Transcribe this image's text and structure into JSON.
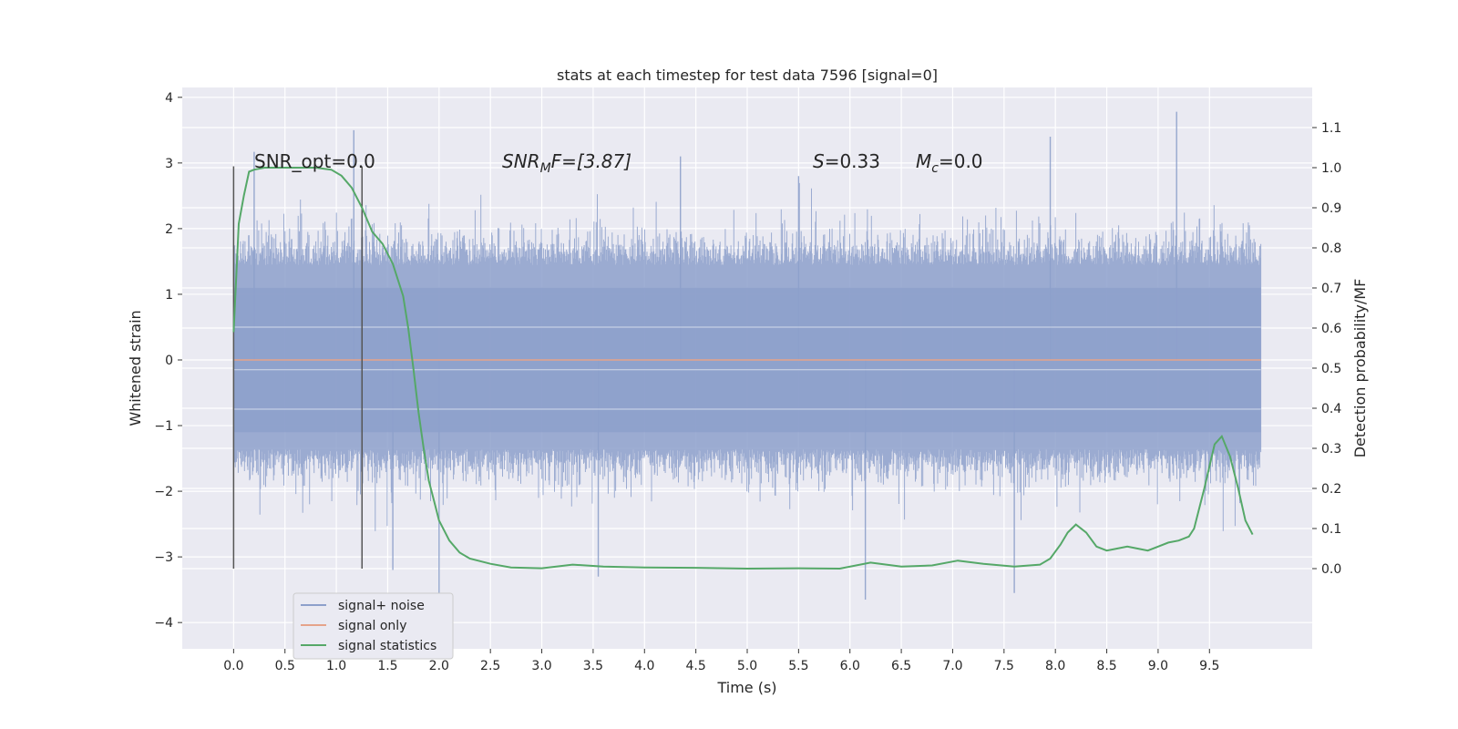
{
  "chart_data": {
    "type": "line",
    "title": "stats at each timestep for test data 7596 [signal=0]",
    "xlabel": "Time (s)",
    "ylabel_left": "Whitened strain",
    "ylabel_right": "Detection probability/MF",
    "xlim": [
      -0.5,
      10.5
    ],
    "ylim_left": [
      -4.4,
      4.15
    ],
    "ylim_right": [
      -0.2,
      1.2
    ],
    "grid": true,
    "legend_placement": "lower-left",
    "x_ticks": [
      "0.0",
      "0.5",
      "1.0",
      "1.5",
      "2.0",
      "2.5",
      "3.0",
      "3.5",
      "4.0",
      "4.5",
      "5.0",
      "5.5",
      "6.0",
      "6.5",
      "7.0",
      "7.5",
      "8.0",
      "8.5",
      "9.0",
      "9.5"
    ],
    "y_ticks_left": [
      "4",
      "3",
      "2",
      "1",
      "0",
      "−1",
      "−2",
      "−3",
      "−4"
    ],
    "y_ticks_right": [
      "1.1",
      "1.0",
      "0.9",
      "0.8",
      "0.7",
      "0.6",
      "0.5",
      "0.4",
      "0.3",
      "0.2",
      "0.1",
      "0.0"
    ],
    "annotations": {
      "snr_opt": "SNR_opt=0.0",
      "snr_mf_main": "SNR",
      "snr_mf_sub": "M",
      "snr_mf_rest": "F=[3.87]",
      "s_var": "S",
      "s_val": "=0.33",
      "mc_var": "M",
      "mc_sub": "c",
      "mc_val": "=0.0"
    },
    "vertical_markers_x": [
      0.0,
      1.25
    ],
    "series": [
      {
        "name": "signal+ noise",
        "color": "#8da0cb",
        "kind": "noise",
        "x_range": [
          0.0,
          10.0
        ],
        "typical_amplitude": 1.7,
        "peak_points": [
          [
            0.2,
            3.17
          ],
          [
            1.17,
            3.5
          ],
          [
            1.55,
            -3.2
          ],
          [
            2.0,
            -4.0
          ],
          [
            3.55,
            -3.3
          ],
          [
            4.35,
            3.1
          ],
          [
            5.5,
            2.8
          ],
          [
            6.15,
            -3.65
          ],
          [
            7.6,
            -3.55
          ],
          [
            7.95,
            3.4
          ],
          [
            9.18,
            3.78
          ]
        ]
      },
      {
        "name": "signal only",
        "color": "#e5a38a",
        "kind": "flat",
        "x": [
          0.0,
          10.0
        ],
        "y": [
          0.0,
          0.0
        ]
      },
      {
        "name": "signal statistics",
        "color": "#55a868",
        "kind": "line",
        "axis": "right",
        "x": [
          0.0,
          0.05,
          0.1,
          0.15,
          0.2,
          0.3,
          0.5,
          0.8,
          0.95,
          1.05,
          1.15,
          1.25,
          1.35,
          1.45,
          1.55,
          1.65,
          1.7,
          1.75,
          1.8,
          1.85,
          1.9,
          1.95,
          2.0,
          2.1,
          2.2,
          2.3,
          2.5,
          2.7,
          3.0,
          3.3,
          3.6,
          4.0,
          4.5,
          5.0,
          5.5,
          5.9,
          6.2,
          6.5,
          6.8,
          7.05,
          7.3,
          7.6,
          7.85,
          7.95,
          8.05,
          8.12,
          8.2,
          8.3,
          8.4,
          8.5,
          8.6,
          8.7,
          8.8,
          8.9,
          9.0,
          9.1,
          9.2,
          9.3,
          9.35,
          9.45,
          9.55,
          9.62,
          9.7,
          9.78,
          9.85,
          9.92
        ],
        "y": [
          0.59,
          0.86,
          0.93,
          0.99,
          0.995,
          1.0,
          1.0,
          1.0,
          0.995,
          0.98,
          0.95,
          0.9,
          0.84,
          0.81,
          0.76,
          0.68,
          0.6,
          0.5,
          0.39,
          0.3,
          0.22,
          0.17,
          0.12,
          0.07,
          0.04,
          0.025,
          0.012,
          0.003,
          0.001,
          0.01,
          0.005,
          0.003,
          0.002,
          0.0,
          0.001,
          0.0,
          0.015,
          0.005,
          0.008,
          0.02,
          0.012,
          0.005,
          0.01,
          0.025,
          0.06,
          0.09,
          0.11,
          0.09,
          0.055,
          0.045,
          0.05,
          0.055,
          0.05,
          0.045,
          0.055,
          0.065,
          0.07,
          0.08,
          0.1,
          0.2,
          0.31,
          0.33,
          0.28,
          0.2,
          0.12,
          0.085
        ]
      }
    ]
  }
}
